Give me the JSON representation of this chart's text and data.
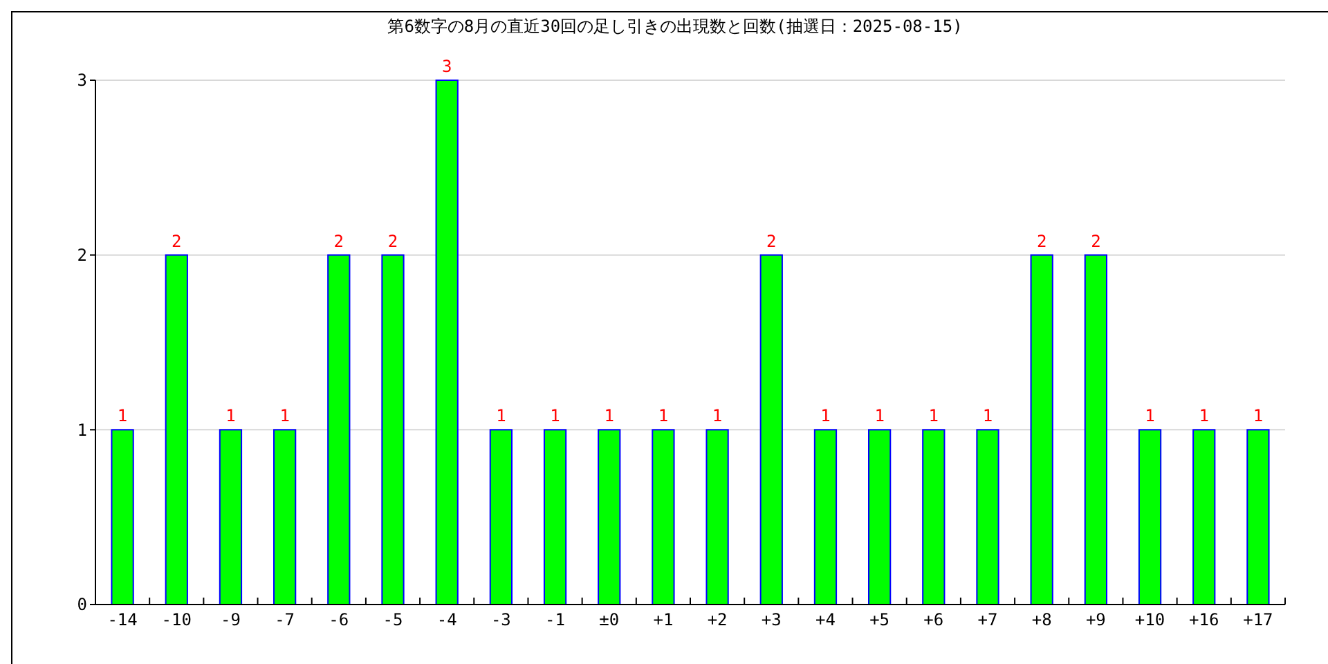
{
  "chart_data": {
    "type": "bar",
    "title": "第6数字の8月の直近30回の足し引きの出現数と回数(抽選日：2025-08-15)",
    "categories": [
      "-14",
      "-10",
      "-9",
      "-7",
      "-6",
      "-5",
      "-4",
      "-3",
      "-1",
      "±0",
      "+1",
      "+2",
      "+3",
      "+4",
      "+5",
      "+6",
      "+7",
      "+8",
      "+9",
      "+10",
      "+16",
      "+17"
    ],
    "values": [
      1,
      2,
      1,
      1,
      2,
      2,
      3,
      1,
      1,
      1,
      1,
      1,
      2,
      1,
      1,
      1,
      1,
      2,
      2,
      1,
      1,
      1
    ],
    "color": "#00ff00",
    "ylim": [
      0,
      3
    ],
    "yticks": [
      0,
      1,
      2,
      3
    ],
    "grid": "y",
    "data_labels": true
  }
}
